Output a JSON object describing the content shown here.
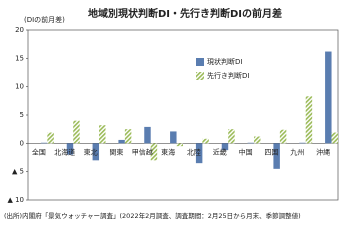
{
  "chart_data": {
    "type": "bar",
    "title": "地域別現状判断DI・先行き判断DIの前月差",
    "y_label": "(DIの前月差)",
    "note": "(出所)内閣府「景気ウォッチャー調査」(2022年2月調査、調査期間：2月25日から月末、季節調整値)",
    "categories": [
      "全国",
      "北海道",
      "東北",
      "関東",
      "甲信越",
      "東海",
      "北陸",
      "近畿",
      "中国",
      "四国",
      "九州",
      "沖縄"
    ],
    "series": [
      {
        "name": "現状判断DI",
        "color": "#5a7db0",
        "values": [
          0.1,
          -2.0,
          -3.0,
          0.6,
          2.9,
          2.1,
          -3.5,
          -1.2,
          0.1,
          -4.5,
          0.1,
          16.2
        ]
      },
      {
        "name": "先行き判断DI",
        "color": "#9bbb59",
        "values": [
          1.9,
          4.0,
          3.2,
          2.5,
          -3.0,
          -0.5,
          0.8,
          2.5,
          1.2,
          2.4,
          8.3,
          1.9
        ]
      }
    ],
    "ylim": [
      -10,
      20
    ],
    "yticks": [
      {
        "value": -10,
        "label": "▲ 10"
      },
      {
        "value": -5,
        "label": "▲ 5"
      },
      0,
      5,
      10,
      15,
      20
    ],
    "grid": false,
    "legend": "upper-right"
  }
}
